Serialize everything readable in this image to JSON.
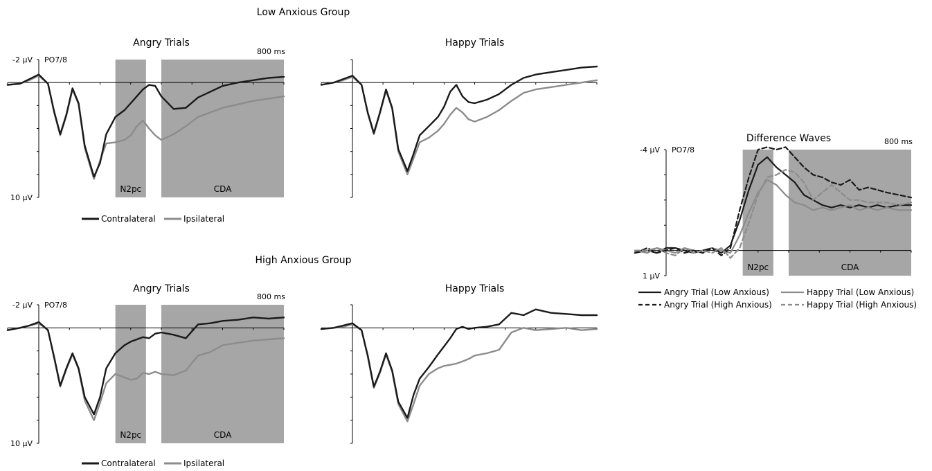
{
  "figure": {
    "low_group_title": "Low Anxious Group",
    "high_group_title": "High Anxious Group",
    "legend_contralateral": "Contralateral",
    "legend_ipsilateral": "Ipsilateral",
    "colors": {
      "contralateral": "#1a1a1a",
      "ipsilateral": "#8c8c8c",
      "window": "#a6a6a6"
    }
  },
  "chart_data": [
    {
      "type": "line",
      "title": "Angry Trials",
      "group": "Low Anxious Group",
      "channel_label": "PO7/8",
      "y_top_label": "-2 µV",
      "y_bottom_label": "10 µV",
      "time_label": "800 ms",
      "xlim": [
        -100,
        800
      ],
      "ylim": [
        -2,
        10
      ],
      "windows": [
        {
          "label": "N2pc",
          "start": 250,
          "end": 350
        },
        {
          "label": "CDA",
          "start": 400,
          "end": 800
        }
      ],
      "x": [
        -100,
        -60,
        -30,
        0,
        30,
        50,
        70,
        90,
        110,
        130,
        150,
        180,
        200,
        220,
        250,
        280,
        300,
        320,
        340,
        360,
        380,
        400,
        440,
        480,
        520,
        560,
        600,
        650,
        700,
        750,
        800
      ],
      "series": [
        {
          "name": "Contralateral",
          "values": [
            0.2,
            0.1,
            -0.3,
            -0.7,
            0.1,
            2.5,
            4.5,
            2.8,
            0.5,
            1.8,
            5.5,
            8.2,
            7.0,
            4.5,
            3.0,
            2.4,
            1.8,
            1.2,
            0.6,
            0.2,
            0.3,
            1.2,
            2.3,
            2.2,
            1.3,
            0.8,
            0.3,
            0.0,
            -0.2,
            -0.4,
            -0.5
          ]
        },
        {
          "name": "Ipsilateral",
          "values": [
            0.2,
            0.1,
            -0.2,
            -0.6,
            0.1,
            2.6,
            4.6,
            2.9,
            0.6,
            1.9,
            5.7,
            8.4,
            6.8,
            5.3,
            5.2,
            5.0,
            4.6,
            3.8,
            3.3,
            4.0,
            4.6,
            5.0,
            4.5,
            3.8,
            3.0,
            2.6,
            2.2,
            1.9,
            1.6,
            1.4,
            1.2
          ]
        }
      ]
    },
    {
      "type": "line",
      "title": "Happy Trials",
      "group": "Low Anxious Group",
      "xlim": [
        -100,
        800
      ],
      "ylim": [
        -2,
        10
      ],
      "x": [
        -100,
        -60,
        -30,
        0,
        30,
        50,
        70,
        90,
        110,
        130,
        150,
        180,
        200,
        220,
        250,
        280,
        300,
        320,
        340,
        360,
        380,
        400,
        440,
        480,
        520,
        560,
        600,
        650,
        700,
        750,
        800
      ],
      "series": [
        {
          "name": "Contralateral",
          "values": [
            0.2,
            0.0,
            -0.3,
            -0.6,
            0.2,
            2.6,
            4.4,
            2.6,
            0.6,
            2.2,
            5.8,
            7.7,
            6.2,
            4.6,
            3.8,
            3.0,
            2.1,
            0.8,
            0.2,
            1.2,
            1.7,
            1.8,
            1.5,
            1.0,
            0.2,
            -0.4,
            -0.7,
            -0.9,
            -1.1,
            -1.3,
            -1.4
          ]
        },
        {
          "name": "Ipsilateral",
          "values": [
            0.2,
            0.0,
            -0.2,
            -0.5,
            0.2,
            2.7,
            4.5,
            2.7,
            0.7,
            2.3,
            6.0,
            8.0,
            6.6,
            5.2,
            4.8,
            4.2,
            3.6,
            2.8,
            2.2,
            2.6,
            3.2,
            3.4,
            3.0,
            2.4,
            1.6,
            0.9,
            0.6,
            0.4,
            0.2,
            0.0,
            -0.2
          ]
        }
      ]
    },
    {
      "type": "line",
      "title": "Angry Trials",
      "group": "High Anxious Group",
      "channel_label": "PO7/8",
      "y_top_label": "-2 µV",
      "y_bottom_label": "10 µV",
      "time_label": "800 ms",
      "xlim": [
        -100,
        800
      ],
      "ylim": [
        -2,
        10
      ],
      "windows": [
        {
          "label": "N2pc",
          "start": 250,
          "end": 350
        },
        {
          "label": "CDA",
          "start": 400,
          "end": 800
        }
      ],
      "x": [
        -100,
        -60,
        -30,
        0,
        30,
        50,
        70,
        90,
        110,
        130,
        150,
        180,
        200,
        220,
        250,
        280,
        300,
        320,
        340,
        360,
        380,
        400,
        440,
        480,
        520,
        560,
        600,
        650,
        700,
        750,
        800
      ],
      "series": [
        {
          "name": "Contralateral",
          "values": [
            0.2,
            0.0,
            -0.2,
            -0.5,
            0.2,
            2.5,
            5.0,
            3.5,
            2.2,
            3.5,
            6.0,
            7.5,
            6.0,
            3.5,
            2.2,
            1.5,
            1.2,
            1.0,
            0.8,
            0.9,
            0.5,
            0.4,
            0.6,
            0.9,
            -0.3,
            -0.4,
            -0.6,
            -0.7,
            -0.9,
            -0.8,
            -0.9
          ]
        },
        {
          "name": "Ipsilateral",
          "values": [
            0.2,
            0.0,
            -0.2,
            -0.4,
            0.2,
            2.6,
            5.1,
            3.6,
            2.3,
            3.6,
            6.3,
            8.0,
            6.5,
            4.8,
            4.0,
            4.3,
            4.5,
            4.4,
            3.9,
            4.0,
            3.8,
            4.0,
            4.1,
            3.7,
            2.4,
            2.1,
            1.5,
            1.3,
            1.1,
            1.0,
            0.9
          ]
        }
      ]
    },
    {
      "type": "line",
      "title": "Happy Trials",
      "group": "High Anxious Group",
      "xlim": [
        -100,
        800
      ],
      "ylim": [
        -2,
        10
      ],
      "x": [
        -100,
        -60,
        -30,
        0,
        30,
        50,
        70,
        90,
        110,
        130,
        150,
        180,
        200,
        220,
        250,
        280,
        300,
        320,
        340,
        360,
        380,
        400,
        440,
        480,
        520,
        560,
        600,
        650,
        700,
        750,
        800
      ],
      "series": [
        {
          "name": "Contralateral",
          "values": [
            0.1,
            0.0,
            -0.2,
            -0.4,
            0.2,
            2.4,
            5.1,
            3.8,
            2.2,
            3.7,
            6.4,
            7.8,
            5.8,
            4.4,
            3.4,
            2.3,
            1.6,
            0.9,
            0.1,
            -0.1,
            0.1,
            0.0,
            -0.1,
            -0.3,
            -1.3,
            -1.1,
            -1.6,
            -1.3,
            -1.2,
            -1.1,
            -1.1
          ]
        },
        {
          "name": "Ipsilateral",
          "values": [
            0.1,
            0.0,
            -0.1,
            -0.3,
            0.2,
            2.5,
            5.2,
            3.9,
            2.3,
            3.8,
            6.6,
            8.1,
            6.6,
            5.0,
            4.0,
            3.5,
            3.3,
            3.2,
            3.1,
            2.9,
            2.7,
            2.4,
            2.2,
            1.9,
            0.4,
            0.0,
            0.2,
            0.1,
            0.0,
            0.2,
            0.1
          ]
        }
      ]
    },
    {
      "type": "line",
      "title": "Difference Waves",
      "channel_label": "PO7/8",
      "y_top_label": "-4 µV",
      "y_bottom_label": "1 µV",
      "time_label": "800 ms",
      "xlim": [
        -100,
        800
      ],
      "ylim": [
        -4,
        1
      ],
      "windows": [
        {
          "label": "N2pc",
          "start": 250,
          "end": 350
        },
        {
          "label": "CDA",
          "start": 400,
          "end": 800
        }
      ],
      "legend": "bottom",
      "x": [
        -100,
        -60,
        -30,
        0,
        30,
        60,
        90,
        120,
        150,
        180,
        210,
        240,
        270,
        300,
        330,
        360,
        390,
        420,
        450,
        480,
        510,
        540,
        570,
        600,
        630,
        660,
        690,
        720,
        760,
        800
      ],
      "series": [
        {
          "name": "Angry Trial (Low Anxious)",
          "style": "solid",
          "color": "#1a1a1a",
          "values": [
            0.1,
            0.0,
            0.1,
            -0.1,
            -0.1,
            0.0,
            0.1,
            0.0,
            -0.1,
            0.1,
            -0.2,
            -1.2,
            -2.4,
            -3.4,
            -3.7,
            -3.3,
            -3.0,
            -2.7,
            -2.2,
            -2.0,
            -1.8,
            -1.7,
            -1.8,
            -1.7,
            -1.8,
            -1.7,
            -1.8,
            -1.7,
            -1.8,
            -1.8
          ]
        },
        {
          "name": "Happy Trial (Low Anxious)",
          "style": "solid",
          "color": "#8c8c8c",
          "values": [
            0.0,
            0.1,
            -0.1,
            0.0,
            0.1,
            -0.1,
            0.0,
            0.1,
            -0.1,
            0.0,
            0.1,
            -0.6,
            -1.5,
            -2.3,
            -2.8,
            -2.6,
            -2.2,
            -1.9,
            -1.8,
            -1.6,
            -1.7,
            -1.6,
            -1.7,
            -1.8,
            -1.6,
            -1.7,
            -1.6,
            -1.7,
            -1.6,
            -1.6
          ]
        },
        {
          "name": "Angry Trial (High Anxious)",
          "style": "dashed",
          "color": "#1a1a1a",
          "values": [
            0.1,
            -0.1,
            0.1,
            0.0,
            -0.1,
            0.1,
            0.0,
            0.1,
            -0.1,
            0.2,
            -0.1,
            -1.6,
            -2.9,
            -4.0,
            -4.1,
            -4.0,
            -4.1,
            -3.7,
            -3.3,
            -3.0,
            -2.9,
            -2.7,
            -2.6,
            -2.8,
            -2.4,
            -2.5,
            -2.4,
            -2.3,
            -2.2,
            -2.1
          ]
        },
        {
          "name": "Happy Trial (High Anxious)",
          "style": "dashed",
          "color": "#8c8c8c",
          "values": [
            0.0,
            0.0,
            -0.1,
            0.1,
            0.2,
            -0.1,
            0.1,
            0.0,
            0.1,
            -0.1,
            0.3,
            -0.1,
            -1.1,
            -2.2,
            -2.9,
            -3.0,
            -3.2,
            -3.1,
            -2.7,
            -2.0,
            -2.3,
            -2.6,
            -2.3,
            -2.0,
            -2.0,
            -1.9,
            -1.9,
            -1.9,
            -1.8,
            -1.9
          ]
        }
      ]
    }
  ]
}
